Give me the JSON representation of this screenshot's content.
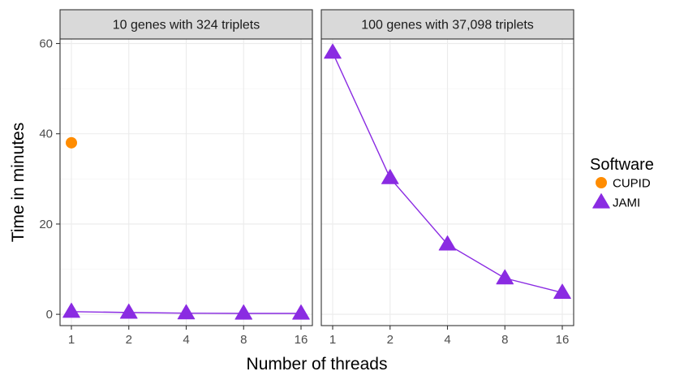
{
  "chart_data": {
    "type": "line",
    "xlabel": "Number of threads",
    "ylabel": "Time in minutes",
    "x_categories": [
      "1",
      "2",
      "4",
      "8",
      "16"
    ],
    "y_ticks": [
      0,
      20,
      40,
      60
    ],
    "ylim": [
      -2.5,
      61
    ],
    "grid": true,
    "legend": {
      "title": "Software",
      "position": "right",
      "entries": [
        {
          "name": "CUPID",
          "color": "#ff8c00",
          "shape": "circle"
        },
        {
          "name": "JAMI",
          "color": "#8a2be2",
          "shape": "triangle"
        }
      ]
    },
    "panels": [
      {
        "title": "10 genes with 324 triplets",
        "series": [
          {
            "name": "CUPID",
            "x": [
              "1"
            ],
            "y": [
              38
            ],
            "color": "#ff8c00",
            "shape": "circle",
            "line": false
          },
          {
            "name": "JAMI",
            "x": [
              "1",
              "2",
              "4",
              "8",
              "16"
            ],
            "y": [
              0.6,
              0.4,
              0.25,
              0.2,
              0.2
            ],
            "color": "#8a2be2",
            "shape": "triangle",
            "line": true
          }
        ]
      },
      {
        "title": "100 genes with 37,098 triplets",
        "series": [
          {
            "name": "JAMI",
            "x": [
              "1",
              "2",
              "4",
              "8",
              "16"
            ],
            "y": [
              58,
              30.2,
              15.5,
              8,
              4.8
            ],
            "color": "#8a2be2",
            "shape": "triangle",
            "line": true
          }
        ]
      }
    ]
  }
}
